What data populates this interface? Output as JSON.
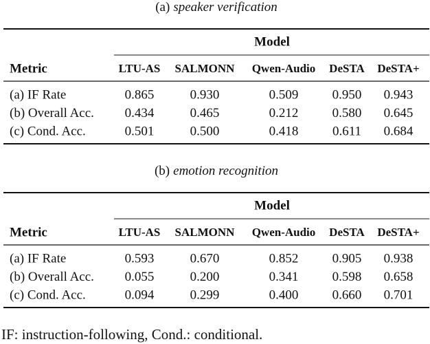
{
  "tables": [
    {
      "caption": {
        "label": "(a)",
        "title": "speaker verification"
      },
      "header": {
        "metric": "Metric",
        "group": "Model",
        "columns": [
          "LTU-AS",
          "SALMONN",
          "Qwen-Audio",
          "DeSTA",
          "DeSTA+"
        ]
      },
      "rows": [
        {
          "metric": "(a) IF Rate",
          "values": [
            "0.865",
            "0.930",
            "0.509",
            "0.950",
            "0.943"
          ]
        },
        {
          "metric": "(b) Overall Acc.",
          "values": [
            "0.434",
            "0.465",
            "0.212",
            "0.580",
            "0.645"
          ]
        },
        {
          "metric": "(c) Cond. Acc.",
          "values": [
            "0.501",
            "0.500",
            "0.418",
            "0.611",
            "0.684"
          ]
        }
      ]
    },
    {
      "caption": {
        "label": "(b)",
        "title": "emotion recognition"
      },
      "header": {
        "metric": "Metric",
        "group": "Model",
        "columns": [
          "LTU-AS",
          "SALMONN",
          "Qwen-Audio",
          "DeSTA",
          "DeSTA+"
        ]
      },
      "rows": [
        {
          "metric": "(a) IF Rate",
          "values": [
            "0.593",
            "0.670",
            "0.852",
            "0.905",
            "0.938"
          ]
        },
        {
          "metric": "(b) Overall Acc.",
          "values": [
            "0.055",
            "0.200",
            "0.341",
            "0.598",
            "0.658"
          ]
        },
        {
          "metric": "(c) Cond. Acc.",
          "values": [
            "0.094",
            "0.299",
            "0.400",
            "0.660",
            "0.701"
          ]
        }
      ]
    }
  ],
  "footnote": "IF: instruction-following, Cond.: conditional."
}
